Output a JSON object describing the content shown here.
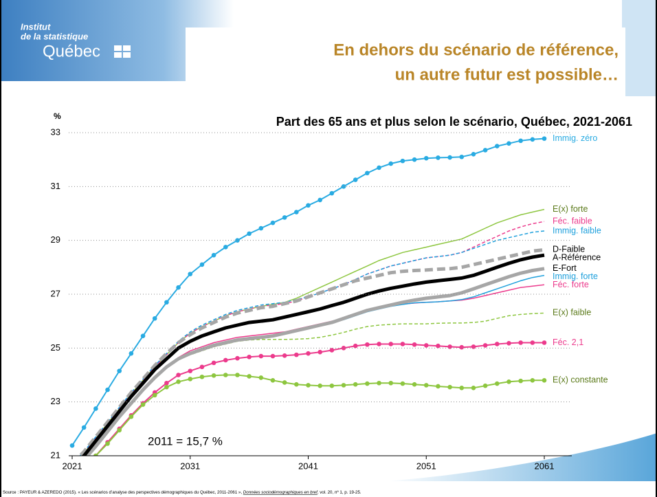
{
  "header": {
    "logo_line1": "Institut",
    "logo_line2": "de la statistique",
    "logo_name": "Québec",
    "heading_line1": "En dehors du scénario de référence,",
    "heading_line2": "un autre futur est possible…"
  },
  "chart_data": {
    "type": "line",
    "title": "Part des 65 ans et plus selon le scénario, Québec, 2021-2061",
    "y_label": "%",
    "annotation": "2011 = 15,7 %",
    "x": [
      2021,
      2022,
      2023,
      2024,
      2025,
      2026,
      2027,
      2028,
      2029,
      2030,
      2031,
      2032,
      2033,
      2034,
      2035,
      2036,
      2037,
      2038,
      2039,
      2040,
      2041,
      2042,
      2043,
      2044,
      2045,
      2046,
      2047,
      2048,
      2049,
      2050,
      2051,
      2052,
      2053,
      2054,
      2055,
      2056,
      2057,
      2058,
      2059,
      2060,
      2061
    ],
    "xlim": [
      2021,
      2061
    ],
    "xticks": [
      2021,
      2031,
      2041,
      2051,
      2061
    ],
    "ylim": [
      21,
      33
    ],
    "yticks": [
      21,
      23,
      25,
      27,
      29,
      31,
      33
    ],
    "grid": true,
    "series": [
      {
        "name": "E(x) faible",
        "color": "#8dc63f",
        "label_color": "#5b7a1a",
        "dash": true,
        "width": 1.5,
        "values": [
          20.4,
          20.85,
          21.35,
          21.9,
          22.45,
          22.95,
          23.45,
          23.9,
          24.3,
          24.6,
          24.75,
          24.9,
          25.05,
          25.15,
          25.25,
          25.3,
          25.32,
          25.32,
          25.32,
          25.33,
          25.35,
          25.4,
          25.48,
          25.58,
          25.7,
          25.8,
          25.85,
          25.88,
          25.9,
          25.9,
          25.9,
          25.92,
          25.93,
          25.93,
          25.95,
          26.0,
          26.1,
          26.2,
          26.25,
          26.28,
          26.3
        ]
      },
      {
        "name": "E(x) forte",
        "color": "#8dc63f",
        "label_color": "#5b7a1a",
        "width": 1.5,
        "values": [
          20.65,
          21.1,
          21.65,
          22.2,
          22.75,
          23.3,
          23.8,
          24.3,
          24.75,
          25.2,
          25.55,
          25.8,
          26.0,
          26.2,
          26.35,
          26.45,
          26.55,
          26.62,
          26.7,
          26.85,
          27.05,
          27.25,
          27.45,
          27.65,
          27.85,
          28.05,
          28.25,
          28.4,
          28.55,
          28.65,
          28.75,
          28.85,
          28.95,
          29.05,
          29.25,
          29.45,
          29.65,
          29.8,
          29.95,
          30.05,
          30.15
        ]
      },
      {
        "name": "Féc. faible",
        "color": "#ec3a8c",
        "label_color": "#ec3a8c",
        "dash": true,
        "width": 1.5,
        "values": [
          20.7,
          21.1,
          21.65,
          22.2,
          22.75,
          23.3,
          23.8,
          24.3,
          24.75,
          25.2,
          25.55,
          25.8,
          26.0,
          26.2,
          26.35,
          26.45,
          26.55,
          26.6,
          26.65,
          26.75,
          26.9,
          27.05,
          27.2,
          27.35,
          27.55,
          27.75,
          27.9,
          28.05,
          28.15,
          28.25,
          28.35,
          28.4,
          28.45,
          28.55,
          28.75,
          28.95,
          29.15,
          29.35,
          29.5,
          29.62,
          29.7
        ]
      },
      {
        "name": "Immig. faible",
        "color": "#1ea0dc",
        "label_color": "#1ea0dc",
        "dash": true,
        "width": 1.5,
        "values": [
          20.7,
          21.15,
          21.7,
          22.25,
          22.8,
          23.35,
          23.85,
          24.35,
          24.8,
          25.25,
          25.6,
          25.85,
          26.05,
          26.25,
          26.4,
          26.5,
          26.6,
          26.65,
          26.7,
          26.8,
          26.9,
          27.05,
          27.2,
          27.35,
          27.55,
          27.75,
          27.9,
          28.05,
          28.15,
          28.25,
          28.35,
          28.4,
          28.45,
          28.55,
          28.7,
          28.85,
          29.0,
          29.1,
          29.2,
          29.3,
          29.35
        ]
      },
      {
        "name": "Féc. forte",
        "color": "#ec3a8c",
        "label_color": "#ec3a8c",
        "width": 1.5,
        "values": [
          20.4,
          20.85,
          21.35,
          21.9,
          22.45,
          22.95,
          23.45,
          23.9,
          24.3,
          24.65,
          24.9,
          25.05,
          25.2,
          25.3,
          25.4,
          25.45,
          25.5,
          25.55,
          25.6,
          25.7,
          25.8,
          25.9,
          26.0,
          26.1,
          26.25,
          26.4,
          26.5,
          26.58,
          26.63,
          26.67,
          26.7,
          26.72,
          26.75,
          26.78,
          26.85,
          26.95,
          27.05,
          27.15,
          27.25,
          27.3,
          27.35
        ]
      },
      {
        "name": "Immig. forte",
        "color": "#1ea0dc",
        "label_color": "#1ea0dc",
        "width": 1.5,
        "values": [
          20.4,
          20.85,
          21.35,
          21.9,
          22.45,
          22.95,
          23.45,
          23.9,
          24.3,
          24.6,
          24.8,
          24.95,
          25.1,
          25.2,
          25.3,
          25.35,
          25.4,
          25.45,
          25.55,
          25.65,
          25.75,
          25.85,
          25.95,
          26.05,
          26.2,
          26.35,
          26.45,
          26.55,
          26.62,
          26.68,
          26.7,
          26.72,
          26.75,
          26.8,
          26.9,
          27.05,
          27.2,
          27.35,
          27.5,
          27.62,
          27.7
        ]
      },
      {
        "name": "E-Fort",
        "color": "#a6a6a6",
        "label_color": "#000000",
        "width": 5,
        "values": [
          20.4,
          20.85,
          21.35,
          21.9,
          22.45,
          22.95,
          23.45,
          23.9,
          24.3,
          24.6,
          24.8,
          24.95,
          25.1,
          25.2,
          25.3,
          25.35,
          25.4,
          25.45,
          25.55,
          25.65,
          25.75,
          25.85,
          25.95,
          26.1,
          26.25,
          26.4,
          26.5,
          26.6,
          26.7,
          26.78,
          26.85,
          26.9,
          26.95,
          27.05,
          27.2,
          27.35,
          27.5,
          27.65,
          27.78,
          27.88,
          27.95
        ]
      },
      {
        "name": "D-Faible",
        "color": "#a6a6a6",
        "label_color": "#000000",
        "dash": true,
        "width": 5,
        "values": [
          20.7,
          21.15,
          21.7,
          22.25,
          22.8,
          23.35,
          23.85,
          24.35,
          24.8,
          25.2,
          25.5,
          25.75,
          25.95,
          26.15,
          26.3,
          26.4,
          26.5,
          26.55,
          26.65,
          26.75,
          26.9,
          27.05,
          27.2,
          27.35,
          27.5,
          27.6,
          27.7,
          27.8,
          27.85,
          27.88,
          27.9,
          27.93,
          27.95,
          28.0,
          28.1,
          28.2,
          28.3,
          28.4,
          28.5,
          28.6,
          28.65
        ]
      },
      {
        "name": "A-Référence",
        "color": "#000000",
        "label_color": "#000000",
        "width": 5,
        "values": [
          20.6,
          21.0,
          21.55,
          22.1,
          22.65,
          23.2,
          23.7,
          24.2,
          24.6,
          25.0,
          25.25,
          25.45,
          25.6,
          25.75,
          25.85,
          25.95,
          26.0,
          26.05,
          26.15,
          26.25,
          26.35,
          26.45,
          26.58,
          26.7,
          26.85,
          27.0,
          27.12,
          27.22,
          27.3,
          27.38,
          27.45,
          27.5,
          27.55,
          27.6,
          27.7,
          27.85,
          28.0,
          28.15,
          28.28,
          28.38,
          28.45
        ]
      },
      {
        "name": "Féc. 2,1",
        "color": "#ec3a8c",
        "label_color": "#ec3a8c",
        "width": 2,
        "markers": true,
        "values": [
          20.3,
          20.7,
          21.0,
          21.5,
          22.0,
          22.5,
          22.95,
          23.35,
          23.7,
          24.0,
          24.15,
          24.3,
          24.45,
          24.55,
          24.62,
          24.67,
          24.7,
          24.7,
          24.72,
          24.75,
          24.8,
          24.85,
          24.92,
          25.0,
          25.08,
          25.13,
          25.15,
          25.15,
          25.15,
          25.13,
          25.1,
          25.08,
          25.05,
          25.03,
          25.05,
          25.1,
          25.15,
          25.18,
          25.2,
          25.2,
          25.2
        ]
      },
      {
        "name": "E(x) constante",
        "color": "#8dc63f",
        "label_color": "#5b7a1a",
        "width": 2,
        "markers": true,
        "values": [
          20.3,
          20.65,
          21.0,
          21.45,
          21.95,
          22.45,
          22.9,
          23.25,
          23.55,
          23.75,
          23.85,
          23.93,
          23.98,
          24.0,
          24.0,
          23.95,
          23.9,
          23.8,
          23.72,
          23.65,
          23.62,
          23.6,
          23.6,
          23.62,
          23.65,
          23.68,
          23.7,
          23.7,
          23.68,
          23.65,
          23.62,
          23.58,
          23.55,
          23.52,
          23.52,
          23.6,
          23.68,
          23.75,
          23.78,
          23.8,
          23.8
        ]
      },
      {
        "name": "Immig. zéro",
        "color": "#29abe2",
        "label_color": "#29abe2",
        "width": 2,
        "markers": true,
        "values": [
          21.38,
          22.05,
          22.75,
          23.45,
          24.15,
          24.8,
          25.45,
          26.1,
          26.7,
          27.25,
          27.75,
          28.1,
          28.45,
          28.75,
          29.0,
          29.25,
          29.45,
          29.65,
          29.85,
          30.05,
          30.3,
          30.5,
          30.75,
          31.0,
          31.25,
          31.5,
          31.7,
          31.85,
          31.95,
          32.0,
          32.05,
          32.07,
          32.08,
          32.1,
          32.2,
          32.35,
          32.5,
          32.6,
          32.7,
          32.75,
          32.78
        ]
      }
    ]
  },
  "source": {
    "text": "Source : PAYEUR & AZEREDO (2015). « Les scénarios d’analyse des perspectives démographiques du Québec, 2011-2061 », ",
    "publication": "Données sociodémographiques en bref",
    "details": ", vol. 20, nº 1, p. 19-25."
  }
}
